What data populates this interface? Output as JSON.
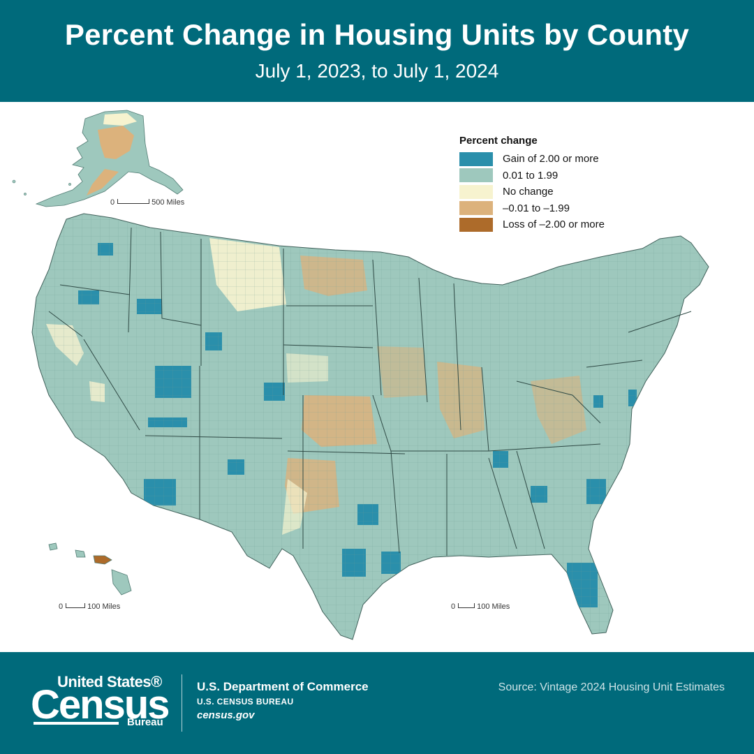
{
  "header": {
    "title": "Percent Change in Housing Units by County",
    "subtitle": "July 1, 2023, to July 1, 2024"
  },
  "legend": {
    "title": "Percent change",
    "items": [
      {
        "label": "Gain of 2.00 or more",
        "color": "#2a8fab"
      },
      {
        "label": "0.01 to 1.99",
        "color": "#9ec8bd"
      },
      {
        "label": "No change",
        "color": "#f7f3cf"
      },
      {
        "label": "–0.01 to –1.99",
        "color": "#dcb27c"
      },
      {
        "label": "Loss of –2.00 or more",
        "color": "#ad6b2a"
      }
    ]
  },
  "scalebars": {
    "alaska": {
      "zero": "0",
      "label": "500 Miles"
    },
    "hawaii": {
      "zero": "0",
      "label": "100 Miles"
    },
    "conus": {
      "zero": "0",
      "label": "100 Miles"
    }
  },
  "footer": {
    "logo_top": "United States®",
    "logo_main": "Census",
    "logo_bureau": "Bureau",
    "dept": "U.S. Department of Commerce",
    "bureau": "U.S. CENSUS BUREAU",
    "site": "census.gov",
    "source": "Source: Vintage 2024 Housing Unit Estimates"
  }
}
